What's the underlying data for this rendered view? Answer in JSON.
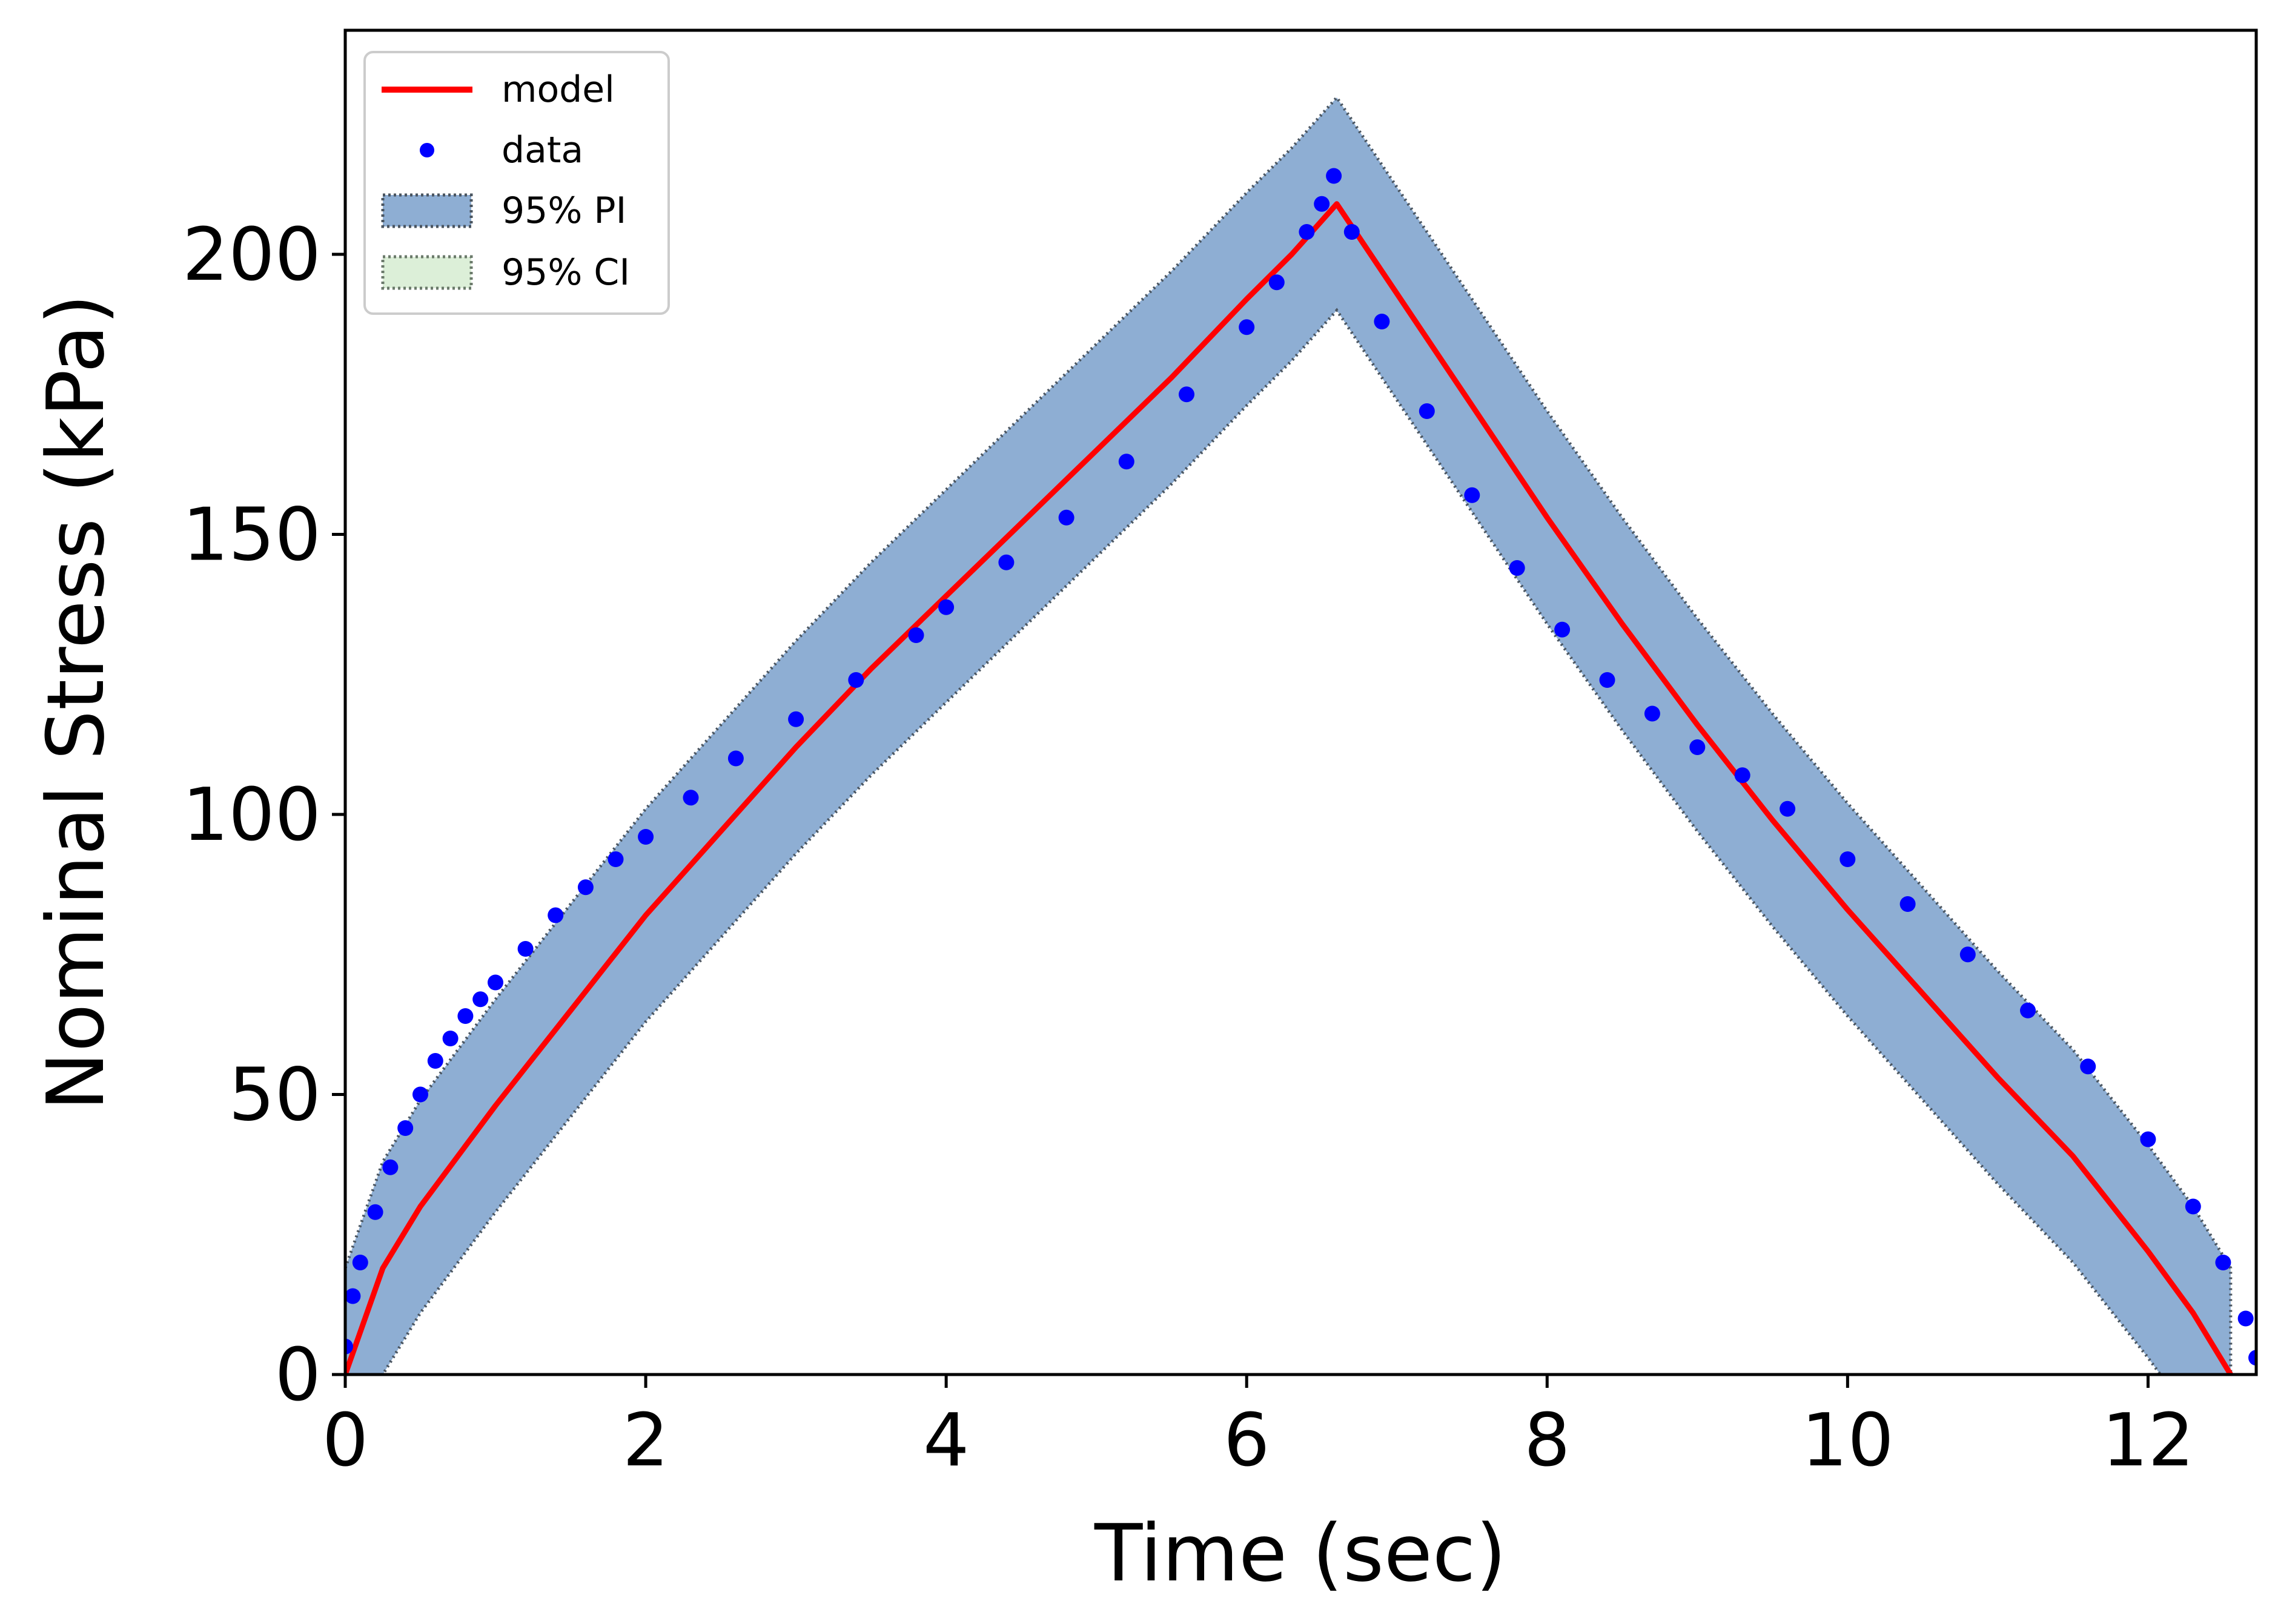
{
  "chart_data": {
    "type": "line",
    "title": "",
    "xlabel": "Time (sec)",
    "ylabel": "Nominal Stress (kPa)",
    "xlim": [
      0,
      12.72
    ],
    "ylim": [
      0,
      240
    ],
    "xticks": [
      0,
      2,
      4,
      6,
      8,
      10,
      12
    ],
    "yticks": [
      0,
      50,
      100,
      150,
      200
    ],
    "xtick_labels": [
      "0",
      "2",
      "4",
      "6",
      "8",
      "10",
      "12"
    ],
    "ytick_labels": [
      "0",
      "50",
      "100",
      "150",
      "200"
    ],
    "grid": false,
    "legend_position": "top-left",
    "colors": {
      "model": "#ff0000",
      "data": "#0000ff",
      "pi_fill": "#8eaed3",
      "pi_edge": "#4a5560",
      "ci_fill": "#dcefd8",
      "ci_edge": "#6b7a6b"
    },
    "series": [
      {
        "name": "model",
        "kind": "line",
        "x": [
          0,
          0.25,
          0.5,
          1.0,
          1.5,
          2.0,
          2.5,
          3.0,
          3.5,
          4.0,
          4.5,
          5.0,
          5.5,
          6.0,
          6.3,
          6.6,
          7.0,
          7.5,
          8.0,
          8.5,
          9.0,
          9.5,
          10.0,
          10.5,
          11.0,
          11.5,
          12.0,
          12.3,
          12.55
        ],
        "y": [
          0,
          19,
          30,
          48,
          65,
          82,
          97,
          112,
          126,
          139,
          152,
          165,
          178,
          192,
          200,
          209,
          193,
          173,
          153,
          134,
          116,
          99,
          83,
          68,
          53,
          39,
          22,
          11,
          0
        ]
      },
      {
        "name": "data",
        "kind": "points",
        "x": [
          0,
          0.05,
          0.1,
          0.2,
          0.3,
          0.4,
          0.5,
          0.6,
          0.7,
          0.8,
          0.9,
          1.0,
          1.2,
          1.4,
          1.6,
          1.8,
          2.0,
          2.3,
          2.6,
          3.0,
          3.4,
          3.8,
          4.0,
          4.4,
          4.8,
          5.2,
          5.6,
          6.0,
          6.2,
          6.4,
          6.5,
          6.58,
          6.7,
          6.9,
          7.2,
          7.5,
          7.8,
          8.1,
          8.4,
          8.7,
          9.0,
          9.3,
          9.6,
          10.0,
          10.4,
          10.8,
          11.2,
          11.6,
          12.0,
          12.3,
          12.5,
          12.65,
          12.72
        ],
        "y": [
          5,
          14,
          20,
          29,
          37,
          44,
          50,
          56,
          60,
          64,
          67,
          70,
          76,
          82,
          87,
          92,
          96,
          103,
          110,
          117,
          124,
          132,
          137,
          145,
          153,
          163,
          175,
          187,
          195,
          204,
          209,
          214,
          204,
          188,
          172,
          157,
          144,
          133,
          124,
          118,
          112,
          107,
          101,
          92,
          84,
          75,
          65,
          55,
          42,
          30,
          20,
          10,
          3
        ]
      },
      {
        "name": "95% PI",
        "kind": "band",
        "halfwidth": 19
      },
      {
        "name": "95% CI",
        "kind": "band",
        "halfwidth": 0
      }
    ]
  }
}
